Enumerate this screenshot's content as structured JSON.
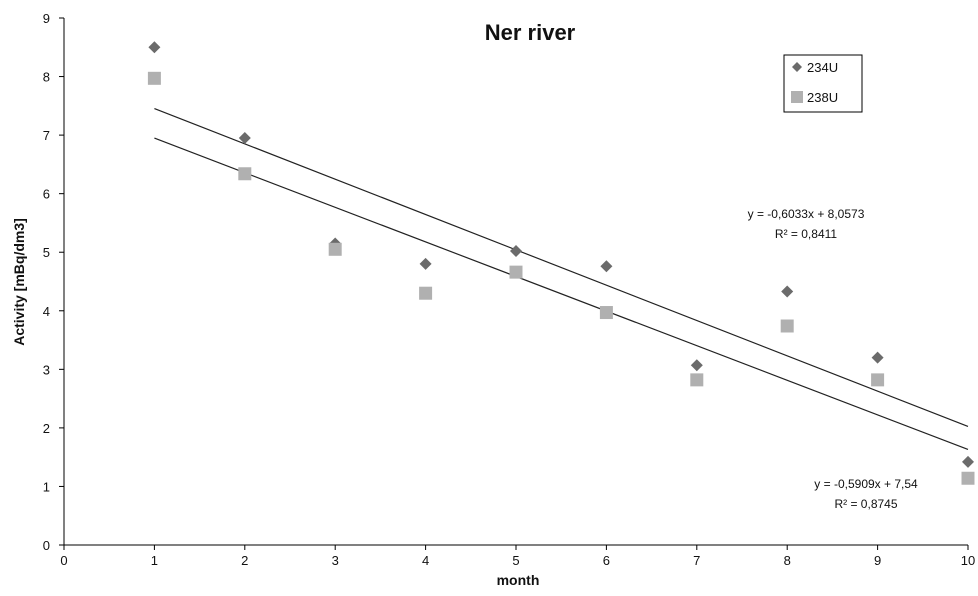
{
  "chart_data": {
    "type": "scatter",
    "title": "Ner river",
    "xlabel": "month",
    "ylabel": "Activity [mBq/dm3]",
    "xlim": [
      0,
      10
    ],
    "ylim": [
      0,
      9
    ],
    "x_ticks": [
      "0",
      "1",
      "2",
      "3",
      "4",
      "5",
      "6",
      "7",
      "8",
      "9",
      "10"
    ],
    "y_ticks": [
      "0",
      "1",
      "2",
      "3",
      "4",
      "5",
      "6",
      "7",
      "8",
      "9"
    ],
    "grid": false,
    "legend_position": "top-right",
    "series": [
      {
        "name": "234U",
        "marker": "diamond",
        "color": "#6b6b6b",
        "x": [
          1,
          2,
          3,
          4,
          5,
          6,
          7,
          8,
          9,
          10
        ],
        "y": [
          8.5,
          6.95,
          5.15,
          4.8,
          5.02,
          4.76,
          3.07,
          4.33,
          3.2,
          1.42
        ]
      },
      {
        "name": "238U",
        "marker": "square",
        "color": "#b0b0b0",
        "x": [
          1,
          2,
          3,
          4,
          5,
          6,
          7,
          8,
          9,
          10
        ],
        "y": [
          7.97,
          6.34,
          5.05,
          4.3,
          4.66,
          3.97,
          2.82,
          3.74,
          2.82,
          1.14
        ]
      }
    ],
    "trendlines": [
      {
        "series": "234U",
        "slope": -0.6033,
        "intercept": 8.0573,
        "x_range": [
          1,
          10
        ],
        "equation_line1": "y = -0,6033x + 8,0573",
        "equation_line2": "R² = 0,8411"
      },
      {
        "series": "238U",
        "slope": -0.5909,
        "intercept": 7.54,
        "x_range": [
          1,
          10
        ],
        "equation_line1": "y = -0,5909x + 7,54",
        "equation_line2": "R² = 0,8745"
      }
    ]
  }
}
